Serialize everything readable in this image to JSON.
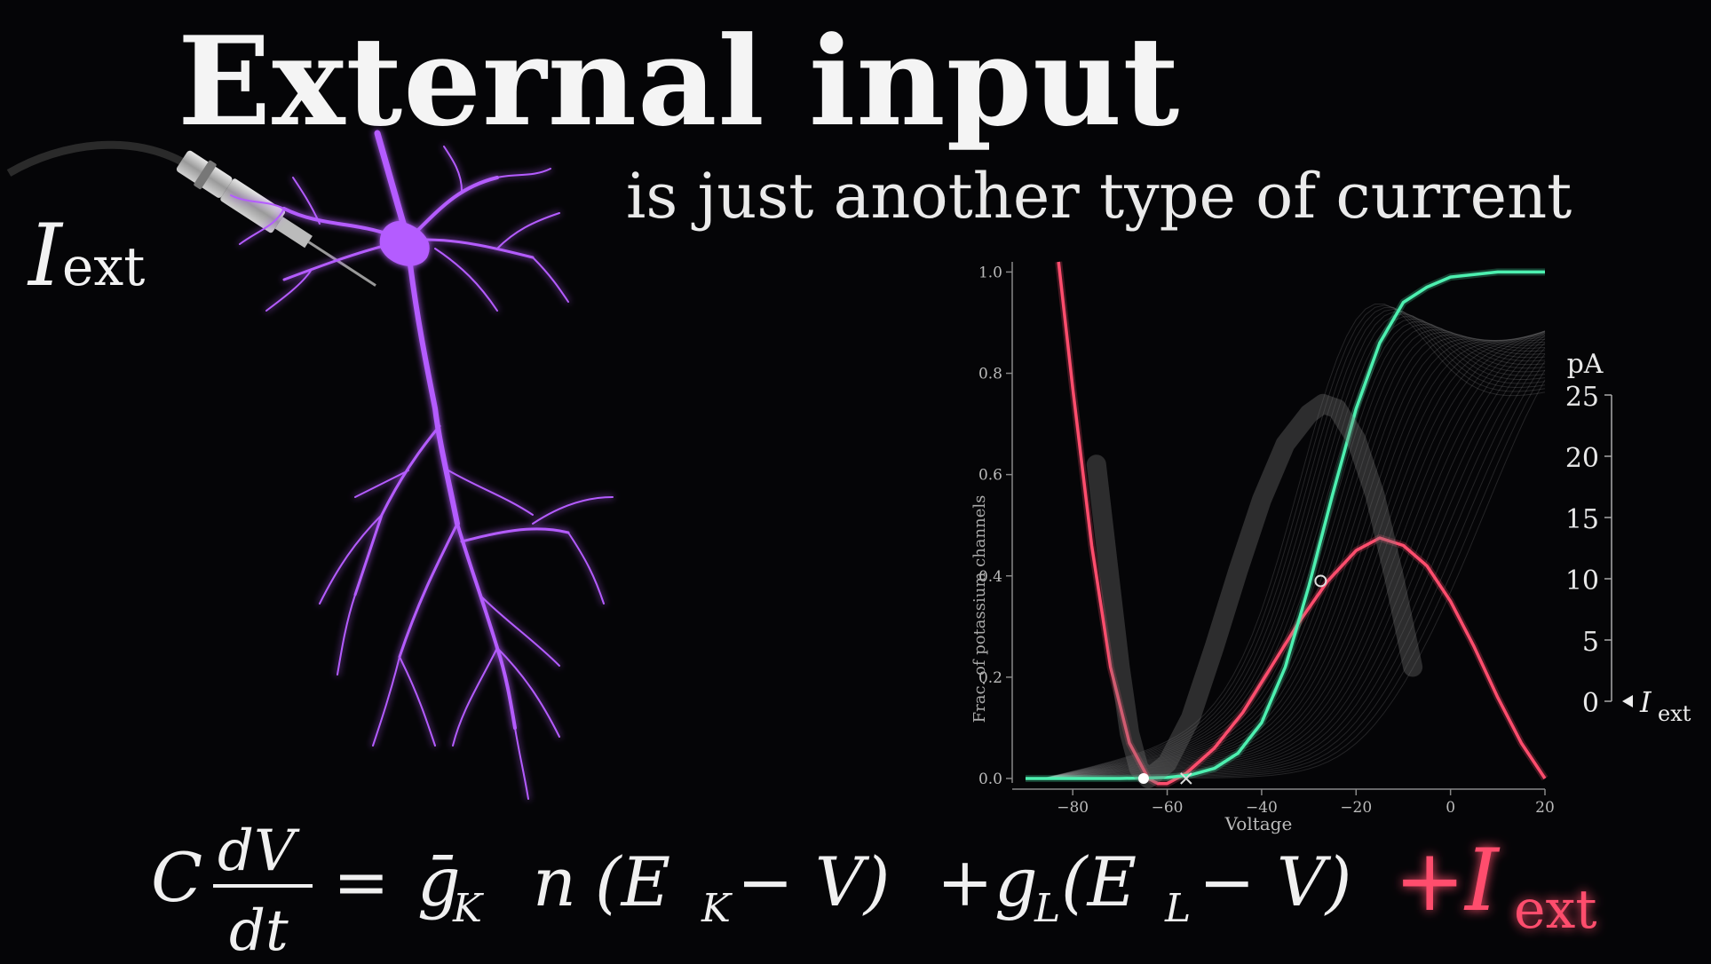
{
  "title": "External input",
  "subtitle": "is just another type of current",
  "left_label": {
    "symbol": "I",
    "subscript": "ext"
  },
  "colors": {
    "background": "#050507",
    "neuron": "#b45cff",
    "red_curve": "#ff4d6d",
    "green_curve": "#4df0b0",
    "highlight_term": "#ff4d6d"
  },
  "icons": [
    "electrode-probe-icon",
    "neuron-illustration"
  ],
  "equation": {
    "lhs_coef": "C",
    "numerator": "dV",
    "denominator": "dt",
    "equals": "=",
    "term1": "ḡ",
    "term1_sub": "K",
    "term1_var": "n",
    "term1_paren": "(E",
    "term1_paren_sub": "K",
    "term1_paren_rest": " − V)",
    "plus": "+",
    "term2": "g",
    "term2_sub": "L",
    "term2_paren": "(E",
    "term2_paren_sub": "L",
    "term2_paren_rest": " − V)",
    "term3_plus": "+",
    "term3": "I",
    "term3_sub": "ext"
  },
  "chart_data": {
    "type": "line",
    "xlabel": "Voltage",
    "ylabel": "Frac. of potassium channels",
    "xlim": [
      -90,
      20
    ],
    "ylim": [
      0,
      1.02
    ],
    "x_ticks": [
      -80,
      -60,
      -40,
      -20,
      0,
      20
    ],
    "x_tick_labels": [
      "−80",
      "−60",
      "−40",
      "−20",
      "0",
      "20"
    ],
    "y_ticks": [
      0.0,
      0.2,
      0.4,
      0.6,
      0.8,
      1.0
    ],
    "y_tick_labels": [
      "0.0",
      "0.2",
      "0.4",
      "0.6",
      "0.8",
      "1.0"
    ],
    "right_axis": {
      "unit_label": "pA",
      "ticks": [
        0,
        5,
        10,
        15,
        20,
        25
      ],
      "tick_labels": [
        "0",
        "5",
        "10",
        "15",
        "20",
        "25"
      ],
      "pointer_value": 0,
      "pointer_label_symbol": "I",
      "pointer_label_sub": "ext"
    },
    "series": [
      {
        "color": "#ff4d6d",
        "x": [
          -83,
          -80,
          -76,
          -72,
          -68,
          -64,
          -62,
          -60,
          -56,
          -50,
          -44,
          -38,
          -32,
          -26,
          -20,
          -15,
          -10,
          -5,
          0,
          5,
          10,
          15,
          20
        ],
        "y": [
          1.02,
          0.77,
          0.46,
          0.22,
          0.07,
          0.0,
          -0.01,
          -0.01,
          0.01,
          0.06,
          0.13,
          0.22,
          0.31,
          0.39,
          0.45,
          0.475,
          0.46,
          0.42,
          0.35,
          0.26,
          0.16,
          0.07,
          0.0
        ]
      },
      {
        "color": "#4df0b0",
        "x": [
          -90,
          -70,
          -60,
          -55,
          -50,
          -45,
          -40,
          -35,
          -30,
          -25,
          -20,
          -15,
          -10,
          -5,
          0,
          10,
          20
        ],
        "y": [
          0.0,
          0.0,
          0.002,
          0.007,
          0.02,
          0.05,
          0.11,
          0.22,
          0.38,
          0.56,
          0.73,
          0.86,
          0.94,
          0.97,
          0.99,
          1.0,
          1.0
        ]
      },
      {
        "color": "#777777",
        "x": [
          -75,
          -72,
          -70,
          -68,
          -66,
          -64,
          -60,
          -55,
          -50,
          -45,
          -40,
          -35,
          -30,
          -27,
          -24,
          -20,
          -16,
          -12,
          -8
        ],
        "y": [
          0.62,
          0.38,
          0.22,
          0.09,
          0.02,
          0.0,
          0.03,
          0.12,
          0.26,
          0.41,
          0.55,
          0.66,
          0.72,
          0.74,
          0.73,
          0.67,
          0.56,
          0.4,
          0.22
        ]
      }
    ],
    "points": [
      {
        "x": -65,
        "y": 0.0,
        "marker": "filled-circle"
      },
      {
        "x": -56,
        "y": 0.0,
        "marker": "cross"
      },
      {
        "x": -27.5,
        "y": 0.39,
        "marker": "ring"
      }
    ]
  }
}
